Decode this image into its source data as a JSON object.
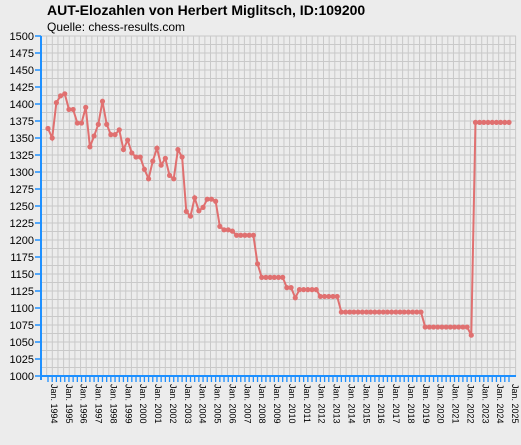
{
  "chart_data": {
    "type": "line",
    "title": "AUT-Elozahlen von Herbert Miglitsch, ID:109200",
    "subtitle": "Quelle: chess-results.com",
    "ylim": [
      1000,
      1500
    ],
    "yticks": [
      1000,
      1025,
      1050,
      1075,
      1100,
      1125,
      1150,
      1175,
      1200,
      1225,
      1250,
      1275,
      1300,
      1325,
      1350,
      1375,
      1400,
      1425,
      1450,
      1475,
      1500
    ],
    "grid": true,
    "line_color": "#e07070",
    "x_labels": [
      "Jan. 1994",
      "Jan. 1995",
      "Jan. 1996",
      "Jan. 1997",
      "Jan. 1998",
      "Jan. 1999",
      "Jan. 2000",
      "Jan. 2001",
      "Jan. 2002",
      "Jan. 2003",
      "Jan. 2004",
      "Jan. 2005",
      "Jan. 2006",
      "Jan. 2007",
      "Jan. 2008",
      "Jan. 2009",
      "Jan. 2010",
      "Jan. 2011",
      "Jan. 2012",
      "Jan. 2013",
      "Jan. 2014",
      "Jan. 2015",
      "Jan. 2016",
      "Jan. 2017",
      "Jan. 2018",
      "Jan. 2019",
      "Jan. 2020",
      "Jan. 2021",
      "Jan. 2022",
      "Jan. 2023",
      "Jan. 2024",
      "Jan. 2025"
    ],
    "series": [
      {
        "values": [
          1364,
          1350,
          1402,
          1412,
          1415,
          1392,
          1392,
          1372,
          1372,
          1395,
          1337,
          1353,
          1370,
          1404,
          1370,
          1355,
          1355,
          1362,
          1333,
          1347,
          1328,
          1322,
          1322,
          1304,
          1290,
          1316,
          1335,
          1310,
          1320,
          1295,
          1290,
          1333,
          1322,
          1242,
          1235,
          1262,
          1243,
          1248,
          1260,
          1260,
          1257,
          1220,
          1215,
          1215,
          1213,
          1207,
          1207,
          1207,
          1207,
          1207,
          1165,
          1145,
          1145,
          1145,
          1145,
          1145,
          1145,
          1130,
          1130,
          1115,
          1127,
          1127,
          1127,
          1127,
          1127,
          1117,
          1117,
          1117,
          1117,
          1117,
          1094,
          1094,
          1094,
          1094,
          1094,
          1094,
          1094,
          1094,
          1094,
          1094,
          1094,
          1094,
          1094,
          1094,
          1094,
          1094,
          1094,
          1094,
          1094,
          1094,
          1072,
          1072,
          1072,
          1072,
          1072,
          1072,
          1072,
          1072,
          1072,
          1072,
          1072,
          1060,
          1373,
          1373,
          1373,
          1373,
          1373,
          1373,
          1373,
          1373,
          1373
        ]
      }
    ]
  }
}
